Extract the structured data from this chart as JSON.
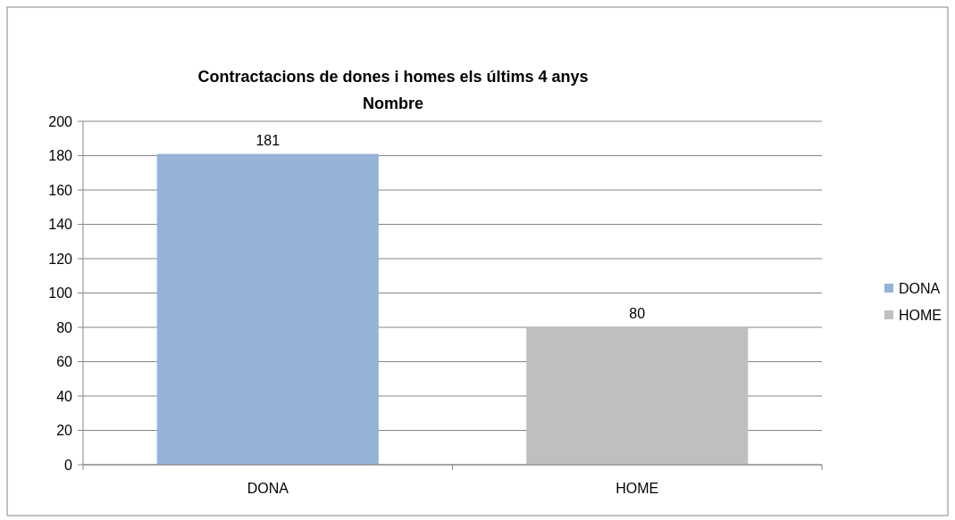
{
  "chart_data": {
    "type": "bar",
    "title": "Contractacions de dones i homes els últims 4 anys",
    "subtitle": "Nombre",
    "categories": [
      "DONA",
      "HOME"
    ],
    "series": [
      {
        "name": "DONA",
        "color": "#95b3d7",
        "values": [
          181,
          null
        ]
      },
      {
        "name": "HOME",
        "color": "#bfbfbf",
        "values": [
          null,
          80
        ]
      }
    ],
    "ylim": [
      0,
      200
    ],
    "yticks": [
      0,
      20,
      40,
      60,
      80,
      100,
      120,
      140,
      160,
      180,
      200
    ],
    "grid": "y",
    "legend": "right",
    "data_labels": true
  }
}
